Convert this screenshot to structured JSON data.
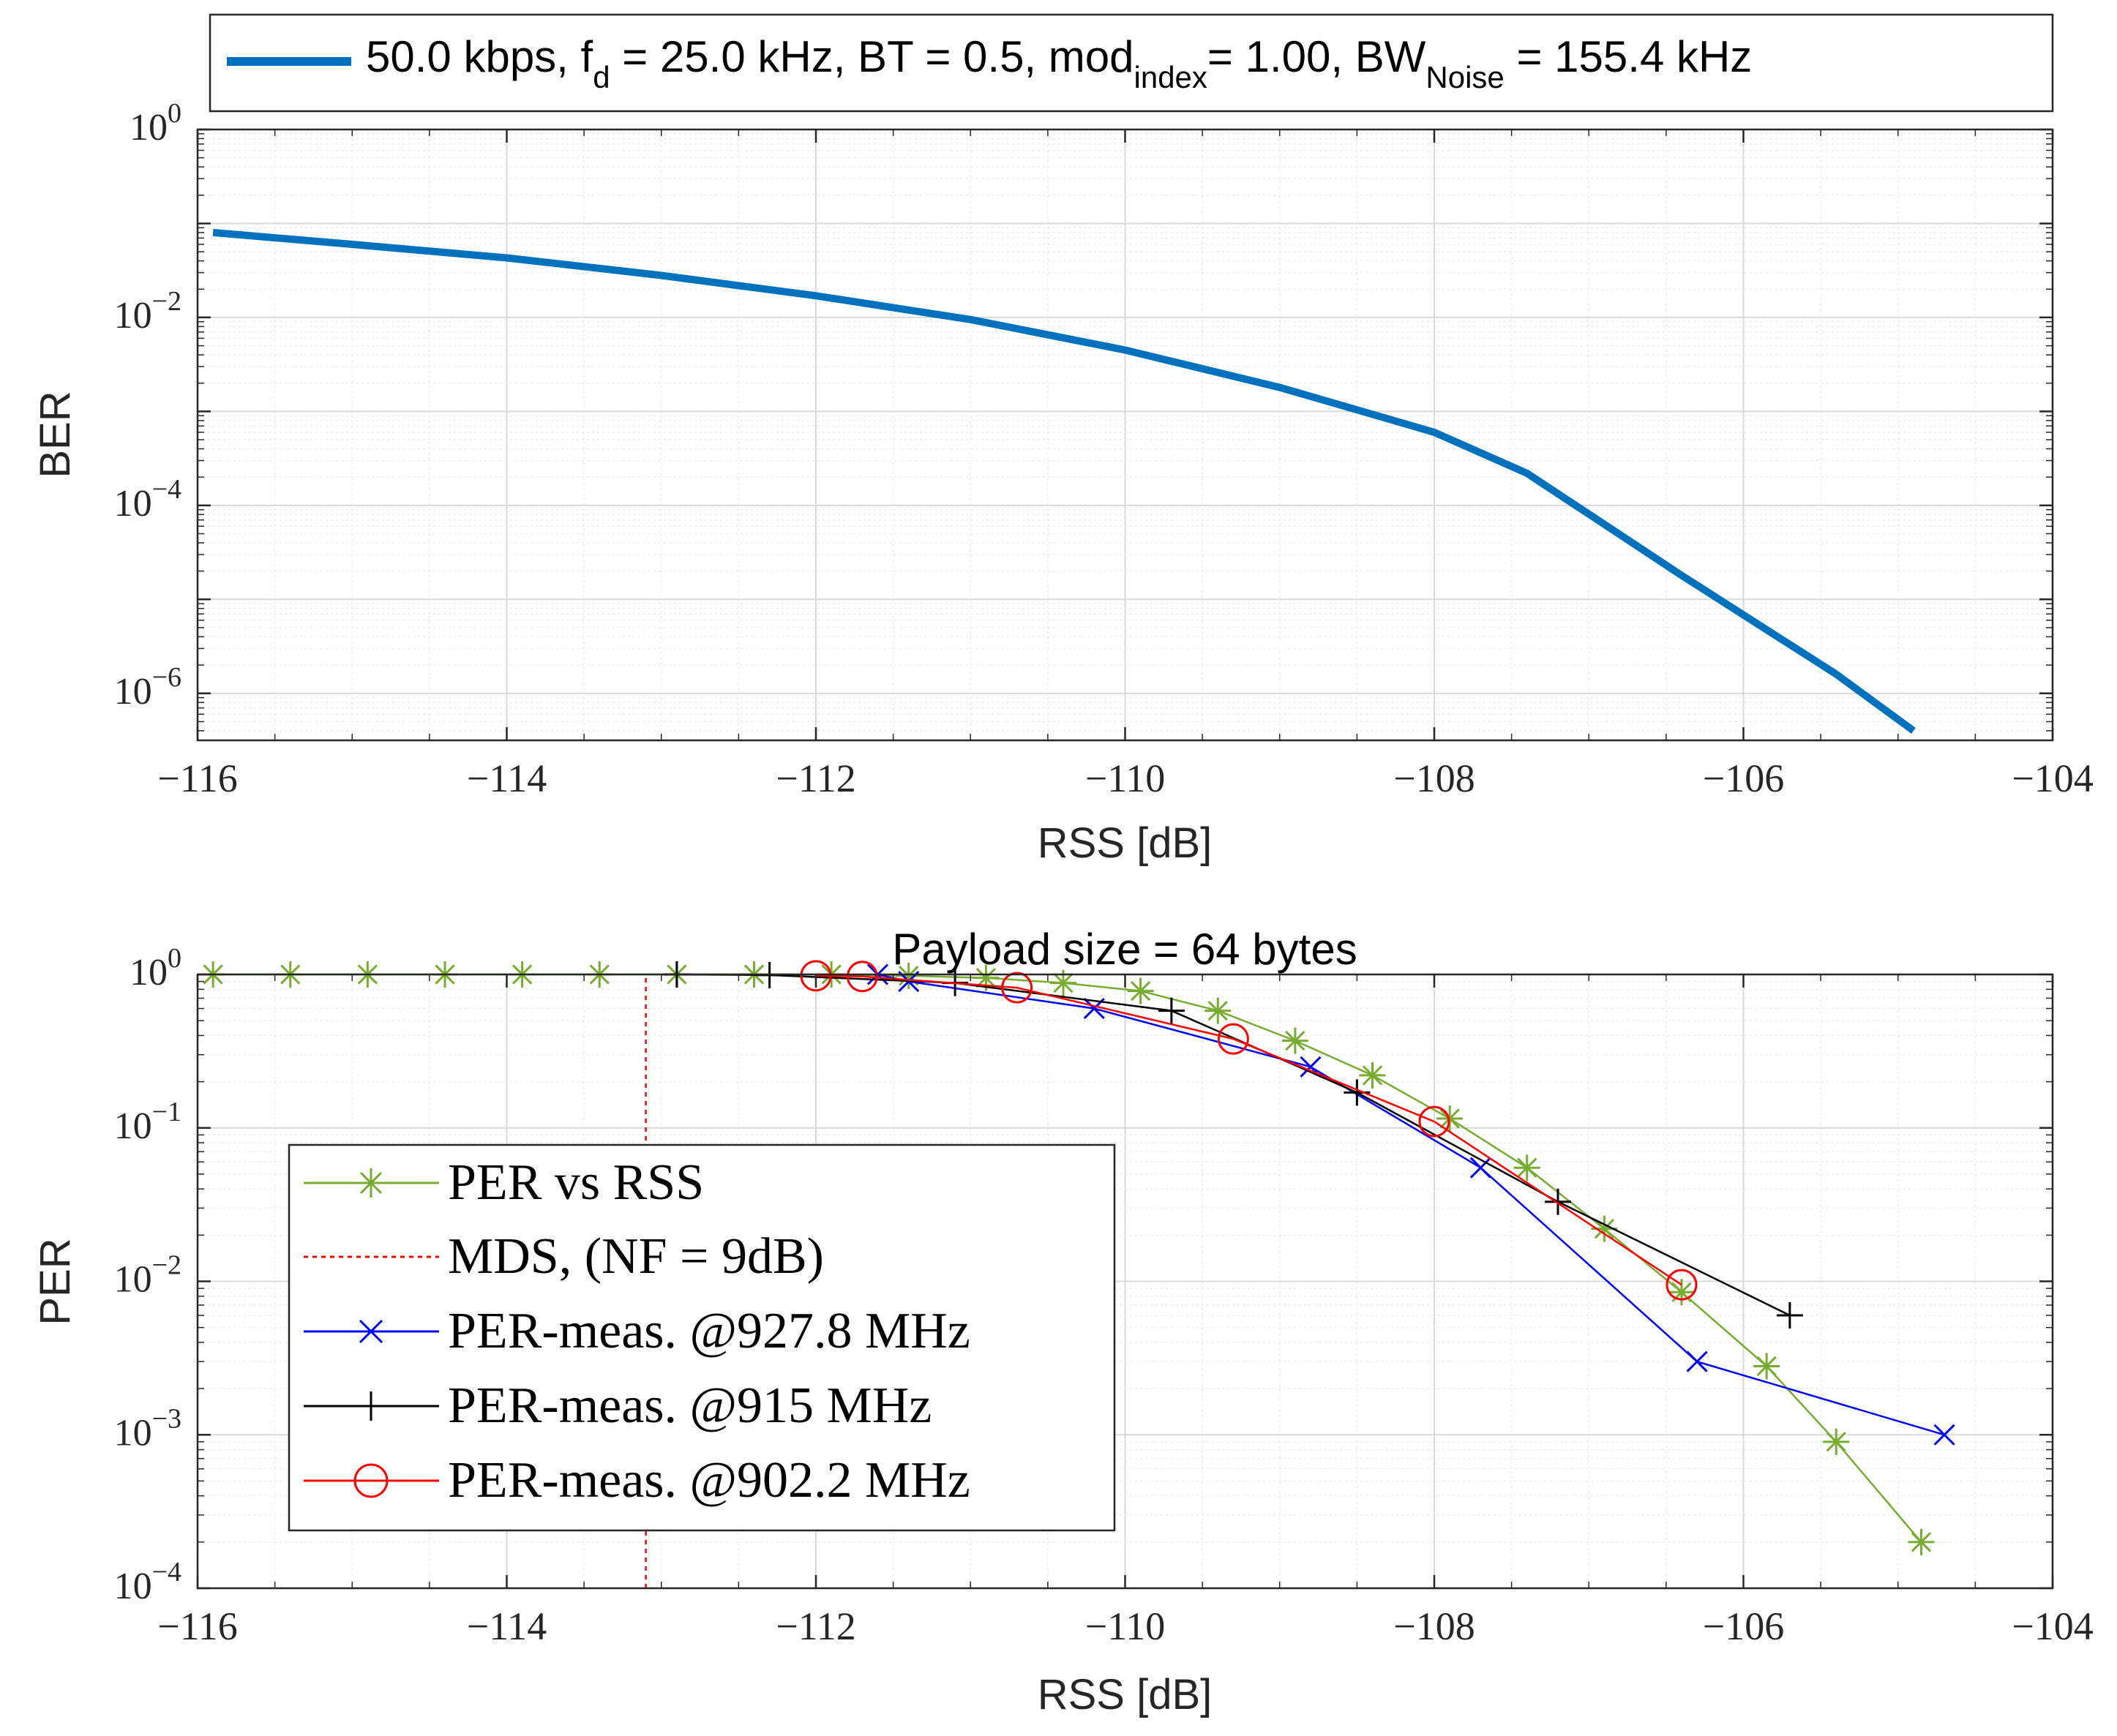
{
  "chart_data": [
    {
      "type": "line",
      "title": "",
      "xlabel": "RSS [dB]",
      "ylabel": "BER",
      "xlim": [
        -116,
        -104
      ],
      "ylim_exponents": [
        -6.5,
        0
      ],
      "log_y": true,
      "grid": true,
      "minor_grid": true,
      "legend_placement": "top-outside",
      "x_ticks": [
        -116,
        -114,
        -112,
        -110,
        -108,
        -106,
        -104
      ],
      "x_tick_labels": [
        "−116",
        "−114",
        "−112",
        "−110",
        "−108",
        "−106",
        "−104"
      ],
      "y_ticks": [
        0,
        -2,
        -4,
        -6
      ],
      "legend": {
        "parts": [
          "50.0 kbps, f",
          "d",
          " = 25.0 kHz, BT = 0.5, mod",
          "index",
          "= 1.00, BW",
          "Noise",
          " = 155.4 kHz"
        ]
      },
      "series": [
        {
          "color": "#0072BD",
          "x": [
            -115.9,
            -115,
            -114,
            -113,
            -112,
            -111,
            -110,
            -109,
            -108,
            -107.4,
            -106.4,
            -105.4,
            -104.9
          ],
          "y": [
            0.08,
            0.06,
            0.043,
            0.028,
            0.017,
            0.0095,
            0.0045,
            0.0018,
            0.0006,
            0.00022,
            1.8e-05,
            1.6e-06,
            4e-07
          ]
        }
      ]
    },
    {
      "type": "line",
      "title": "Payload size = 64 bytes",
      "xlabel": "RSS [dB]",
      "ylabel": "PER",
      "xlim": [
        -116,
        -104
      ],
      "ylim": [
        0.0001,
        1
      ],
      "log_y": true,
      "grid": true,
      "minor_grid": true,
      "legend_placement": "bottom-left",
      "x_ticks": [
        -116,
        -114,
        -112,
        -110,
        -108,
        -106,
        -104
      ],
      "x_tick_labels": [
        "−116",
        "−114",
        "−112",
        "−110",
        "−108",
        "−106",
        "−104"
      ],
      "y_ticks": [
        0,
        -1,
        -2,
        -3,
        -4
      ],
      "series": [
        {
          "name": "PER vs RSS",
          "color": "#77AC30",
          "marker": "asterisk",
          "x": [
            -115.9,
            -115.4,
            -114.9,
            -114.4,
            -113.9,
            -113.4,
            -112.9,
            -112.4,
            -111.9,
            -111.4,
            -110.9,
            -110.4,
            -109.9,
            -109.4,
            -108.9,
            -108.4,
            -107.9,
            -107.4,
            -106.9,
            -106.4,
            -105.85,
            -105.4,
            -104.85
          ],
          "y": [
            1,
            1,
            1,
            1,
            1,
            1,
            1,
            1,
            1,
            0.98,
            0.95,
            0.88,
            0.78,
            0.58,
            0.37,
            0.22,
            0.115,
            0.055,
            0.022,
            0.0085,
            0.0028,
            0.0009,
            0.0002
          ]
        },
        {
          "name": "MDS, (NF = 9dB)",
          "color": "#ff0000",
          "style": "dotted",
          "x": [
            -113.1,
            -113.1
          ],
          "y": [
            0.0001,
            1
          ]
        },
        {
          "name": "PER-meas. @927.8 MHz",
          "color": "#0000ff",
          "marker": "x",
          "x": [
            -111.6,
            -111.4,
            -110.2,
            -108.8,
            -107.7,
            -106.3,
            -104.7
          ],
          "y": [
            1,
            0.9,
            0.6,
            0.25,
            0.055,
            0.003,
            0.001
          ]
        },
        {
          "name": "PER-meas. @915 MHz",
          "color": "#000000",
          "marker": "plus",
          "x": [
            -112.9,
            -112.3,
            -111.1,
            -109.7,
            -108.5,
            -107.2,
            -105.7
          ],
          "y": [
            1,
            0.99,
            0.88,
            0.58,
            0.17,
            0.033,
            0.006
          ]
        },
        {
          "name": "PER-meas. @902.2 MHz",
          "color": "#ff0000",
          "marker": "circle",
          "x": [
            -112.0,
            -111.7,
            -110.7,
            -109.3,
            -108.0,
            -106.4
          ],
          "y": [
            0.98,
            0.97,
            0.82,
            0.38,
            0.11,
            0.0095
          ]
        }
      ]
    }
  ]
}
